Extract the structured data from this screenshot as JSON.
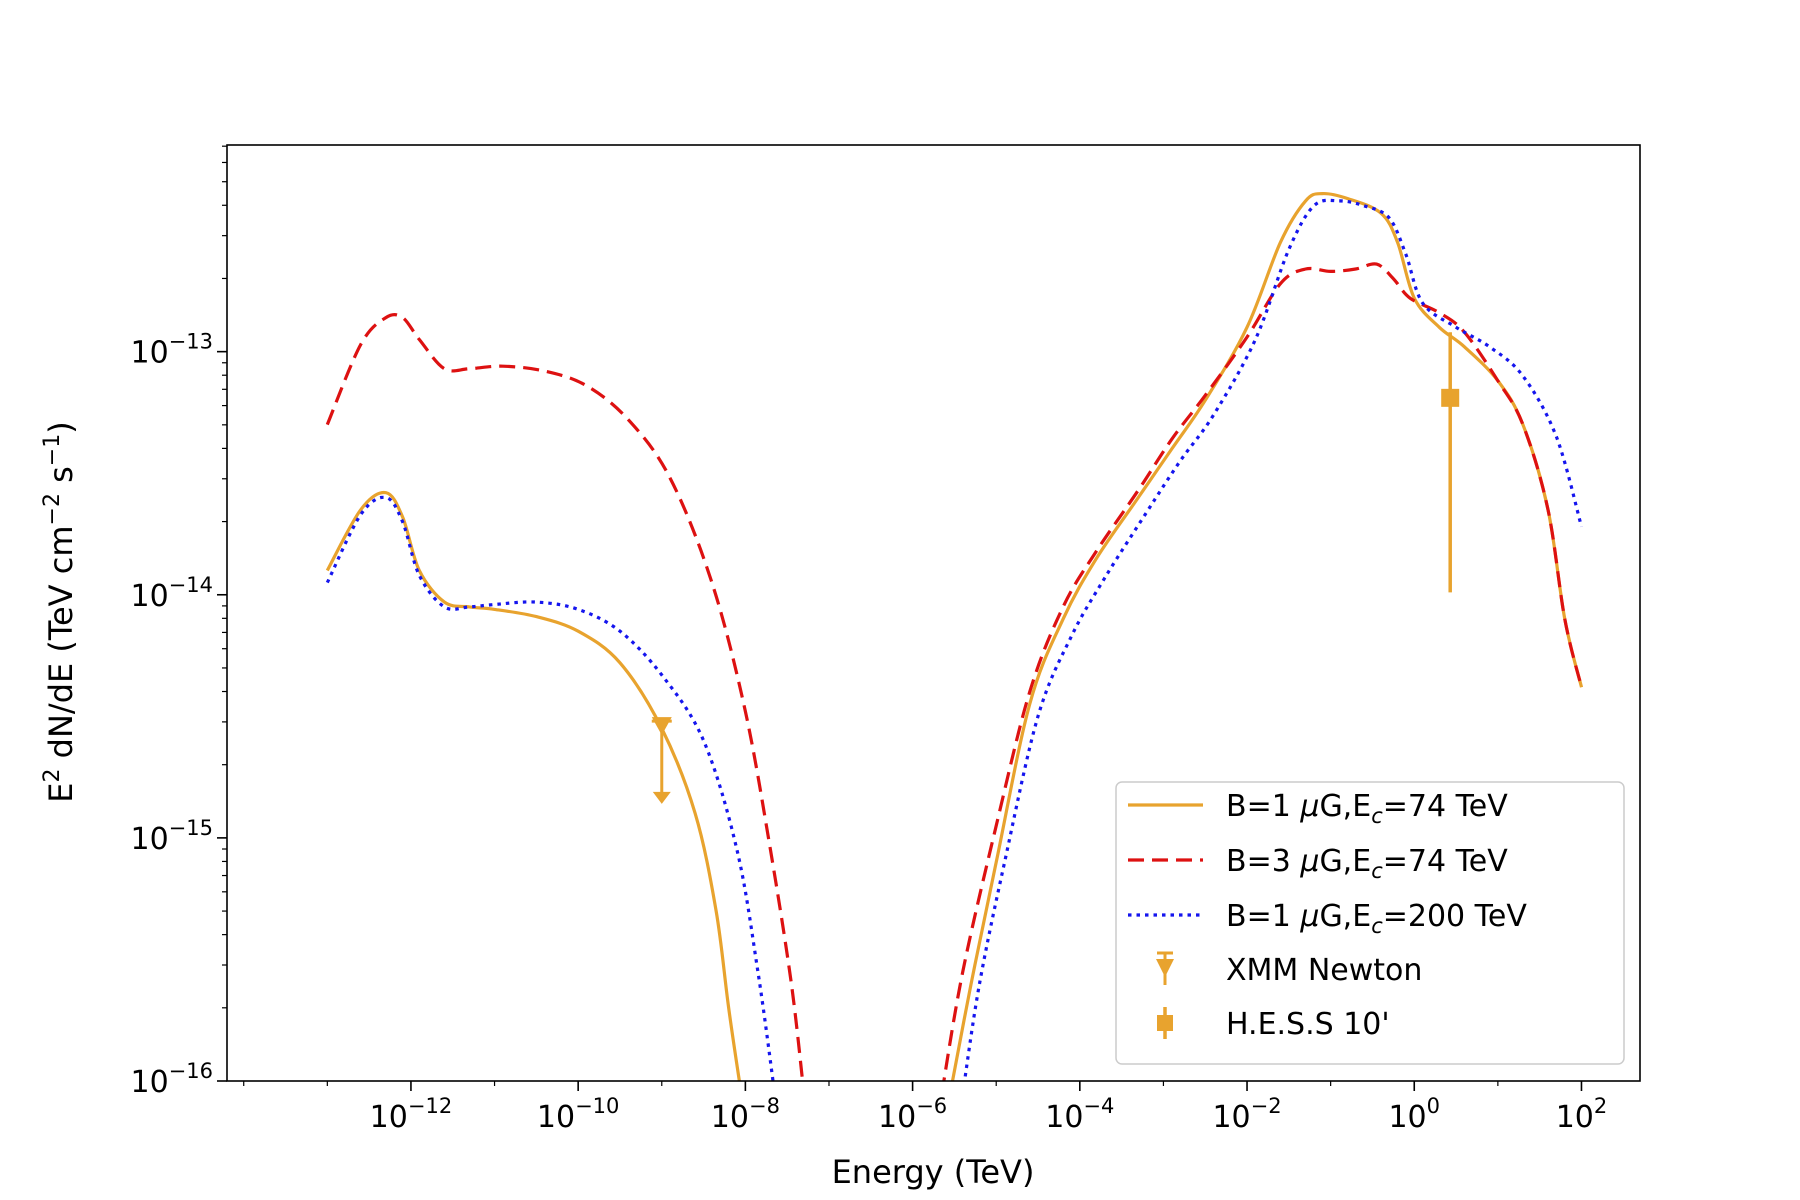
{
  "chart_data": {
    "type": "line",
    "title": "",
    "xlabel": "Energy (TeV)",
    "ylabel": {
      "prefix": "E",
      "prefix_sup": "2",
      "middle": " dN/dE (TeV cm",
      "cm_sup": "−2",
      "s_text": " s",
      "s_sup": "−1",
      "suffix": ")"
    },
    "xscale": "log",
    "yscale": "log",
    "xlim_log10": [
      -14.2,
      2.7
    ],
    "ylim_log10": [
      -16,
      -12.15
    ],
    "xticks": [
      {
        "base": "10",
        "exp": "−12",
        "log10": -12
      },
      {
        "base": "10",
        "exp": "−10",
        "log10": -10
      },
      {
        "base": "10",
        "exp": "−8",
        "log10": -8
      },
      {
        "base": "10",
        "exp": "−6",
        "log10": -6
      },
      {
        "base": "10",
        "exp": "−4",
        "log10": -4
      },
      {
        "base": "10",
        "exp": "−2",
        "log10": -2
      },
      {
        "base": "10",
        "exp": "0",
        "log10": 0
      },
      {
        "base": "10",
        "exp": "2",
        "log10": 2
      }
    ],
    "yticks": [
      {
        "base": "10",
        "exp": "−13",
        "log10": -13
      },
      {
        "base": "10",
        "exp": "−14",
        "log10": -14
      },
      {
        "base": "10",
        "exp": "−15",
        "log10": -15
      },
      {
        "base": "10",
        "exp": "−16",
        "log10": -16
      }
    ],
    "series": [
      {
        "name": "B=1 μG,E_c=74 TeV",
        "legend": {
          "pre": "B=1 ",
          "mu": "μ",
          "mid": "G,E",
          "sub": "c",
          "post": "=74 TeV"
        },
        "color": "#e8a32e",
        "dash": "solid",
        "segments": [
          [
            [
              -13.0,
              -13.9
            ],
            [
              -12.6,
              -13.65
            ],
            [
              -12.3,
              -13.58
            ],
            [
              -12.1,
              -13.68
            ],
            [
              -11.9,
              -13.9
            ],
            [
              -11.6,
              -14.03
            ],
            [
              -11.3,
              -14.05
            ],
            [
              -11.0,
              -14.06
            ],
            [
              -10.5,
              -14.09
            ],
            [
              -10.0,
              -14.15
            ],
            [
              -9.5,
              -14.28
            ],
            [
              -9.0,
              -14.55
            ],
            [
              -8.6,
              -14.9
            ],
            [
              -8.35,
              -15.3
            ],
            [
              -8.2,
              -15.7
            ],
            [
              -8.05,
              -16.05
            ]
          ],
          [
            [
              -5.55,
              -16.05
            ],
            [
              -5.3,
              -15.6
            ],
            [
              -5.0,
              -15.1
            ],
            [
              -4.6,
              -14.45
            ],
            [
              -4.2,
              -14.1
            ],
            [
              -3.8,
              -13.85
            ],
            [
              -3.3,
              -13.6
            ],
            [
              -2.9,
              -13.4
            ],
            [
              -2.5,
              -13.2
            ],
            [
              -2.0,
              -12.9
            ],
            [
              -1.6,
              -12.55
            ],
            [
              -1.3,
              -12.38
            ],
            [
              -1.1,
              -12.35
            ],
            [
              -0.8,
              -12.37
            ],
            [
              -0.4,
              -12.43
            ],
            [
              -0.2,
              -12.55
            ],
            [
              0.0,
              -12.78
            ],
            [
              0.3,
              -12.9
            ],
            [
              0.6,
              -12.98
            ],
            [
              1.0,
              -13.12
            ],
            [
              1.3,
              -13.3
            ],
            [
              1.6,
              -13.65
            ],
            [
              1.8,
              -14.1
            ],
            [
              2.0,
              -14.38
            ]
          ]
        ]
      },
      {
        "name": "B=3 μG,E_c=74 TeV",
        "legend": {
          "pre": "B=3 ",
          "mu": "μ",
          "mid": "G,E",
          "sub": "c",
          "post": "=74 TeV"
        },
        "color": "#dd1111",
        "dash": "dashed",
        "segments": [
          [
            [
              -13.0,
              -13.3
            ],
            [
              -12.6,
              -12.97
            ],
            [
              -12.3,
              -12.86
            ],
            [
              -12.1,
              -12.86
            ],
            [
              -11.9,
              -12.95
            ],
            [
              -11.6,
              -13.07
            ],
            [
              -11.3,
              -13.07
            ],
            [
              -10.9,
              -13.06
            ],
            [
              -10.4,
              -13.08
            ],
            [
              -9.9,
              -13.14
            ],
            [
              -9.4,
              -13.28
            ],
            [
              -8.9,
              -13.52
            ],
            [
              -8.4,
              -13.95
            ],
            [
              -8.0,
              -14.48
            ],
            [
              -7.7,
              -15.05
            ],
            [
              -7.45,
              -15.6
            ],
            [
              -7.3,
              -16.05
            ]
          ],
          [
            [
              -5.65,
              -16.05
            ],
            [
              -5.4,
              -15.55
            ],
            [
              -5.0,
              -14.95
            ],
            [
              -4.6,
              -14.4
            ],
            [
              -4.2,
              -14.05
            ],
            [
              -3.8,
              -13.82
            ],
            [
              -3.3,
              -13.57
            ],
            [
              -2.9,
              -13.36
            ],
            [
              -2.5,
              -13.18
            ],
            [
              -2.0,
              -12.94
            ],
            [
              -1.6,
              -12.72
            ],
            [
              -1.3,
              -12.66
            ],
            [
              -1.0,
              -12.67
            ],
            [
              -0.7,
              -12.66
            ],
            [
              -0.45,
              -12.64
            ],
            [
              -0.25,
              -12.7
            ],
            [
              -0.05,
              -12.78
            ],
            [
              0.3,
              -12.84
            ],
            [
              0.6,
              -12.92
            ],
            [
              1.0,
              -13.12
            ],
            [
              1.3,
              -13.3
            ],
            [
              1.6,
              -13.65
            ],
            [
              1.8,
              -14.1
            ],
            [
              2.0,
              -14.38
            ]
          ]
        ]
      },
      {
        "name": "B=1 μG,E_c=200 TeV",
        "legend": {
          "pre": "B=1 ",
          "mu": "μ",
          "mid": "G,E",
          "sub": "c",
          "post": "=200 TeV"
        },
        "color": "#1515ee",
        "dash": "dotted",
        "segments": [
          [
            [
              -13.0,
              -13.95
            ],
            [
              -12.6,
              -13.67
            ],
            [
              -12.3,
              -13.6
            ],
            [
              -12.1,
              -13.7
            ],
            [
              -11.9,
              -13.92
            ],
            [
              -11.6,
              -14.05
            ],
            [
              -11.3,
              -14.05
            ],
            [
              -11.0,
              -14.04
            ],
            [
              -10.5,
              -14.03
            ],
            [
              -10.0,
              -14.06
            ],
            [
              -9.5,
              -14.15
            ],
            [
              -9.0,
              -14.33
            ],
            [
              -8.5,
              -14.6
            ],
            [
              -8.1,
              -15.05
            ],
            [
              -7.85,
              -15.55
            ],
            [
              -7.65,
              -16.05
            ]
          ],
          [
            [
              -5.4,
              -16.05
            ],
            [
              -5.2,
              -15.6
            ],
            [
              -4.9,
              -15.1
            ],
            [
              -4.5,
              -14.5
            ],
            [
              -4.1,
              -14.17
            ],
            [
              -3.7,
              -13.93
            ],
            [
              -3.2,
              -13.66
            ],
            [
              -2.8,
              -13.45
            ],
            [
              -2.4,
              -13.26
            ],
            [
              -1.9,
              -12.95
            ],
            [
              -1.5,
              -12.58
            ],
            [
              -1.2,
              -12.4
            ],
            [
              -0.9,
              -12.38
            ],
            [
              -0.6,
              -12.4
            ],
            [
              -0.3,
              -12.45
            ],
            [
              -0.1,
              -12.6
            ],
            [
              0.1,
              -12.8
            ],
            [
              0.5,
              -12.9
            ],
            [
              0.9,
              -12.98
            ],
            [
              1.3,
              -13.1
            ],
            [
              1.7,
              -13.35
            ],
            [
              2.0,
              -13.72
            ]
          ]
        ]
      }
    ],
    "points": [
      {
        "name": "XMM Newton",
        "color": "#e8a32e",
        "marker": "triangle_down",
        "x_log10": -9.0,
        "y_log10": -14.52,
        "upper_limit": true,
        "arrow_to_log10": -14.86
      },
      {
        "name": "H.E.S.S 10'",
        "color": "#e8a32e",
        "marker": "square",
        "x_log10": 0.43,
        "y_log10": -13.19,
        "err_low_log10": -13.99,
        "err_high_log10": -12.92
      }
    ],
    "legend_position": "lower-right"
  }
}
